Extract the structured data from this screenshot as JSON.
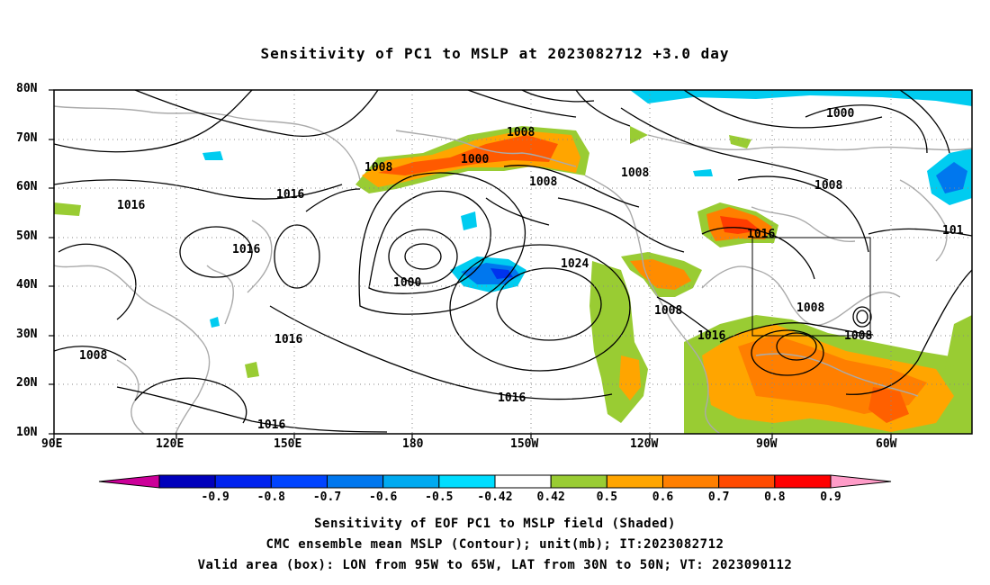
{
  "title": "Sensitivity of PC1 to MSLP at 2023082712 +3.0 day",
  "lat_labels": [
    "80N",
    "70N",
    "60N",
    "50N",
    "40N",
    "30N",
    "20N",
    "10N"
  ],
  "lon_labels": [
    "90E",
    "120E",
    "150E",
    "180",
    "150W",
    "120W",
    "90W",
    "60W"
  ],
  "contour_labels": [
    {
      "text": "1008"
    },
    {
      "text": "1000"
    },
    {
      "text": "1008"
    },
    {
      "text": "1008"
    },
    {
      "text": "1008"
    },
    {
      "text": "1016"
    },
    {
      "text": "1016"
    },
    {
      "text": "1016"
    },
    {
      "text": "1000"
    },
    {
      "text": "1024"
    },
    {
      "text": "1016"
    },
    {
      "text": "1016"
    },
    {
      "text": "1008"
    },
    {
      "text": "1016"
    },
    {
      "text": "1008"
    },
    {
      "text": "1008"
    },
    {
      "text": "1016"
    },
    {
      "text": "1008"
    },
    {
      "text": "1000"
    },
    {
      "text": "1016"
    },
    {
      "text": "1008"
    },
    {
      "text": "101"
    }
  ],
  "colorbar": {
    "labels": [
      "-0.9",
      "-0.8",
      "-0.7",
      "-0.6",
      "-0.5",
      "-0.42",
      "0.42",
      "0.5",
      "0.6",
      "0.7",
      "0.8",
      "0.9"
    ],
    "colors": [
      "#cc0099",
      "#0000bb",
      "#0022ee",
      "#0044ff",
      "#0077ee",
      "#00aaf0",
      "#00ddff",
      "#ffffff",
      "#99cc33",
      "#ffa500",
      "#ff7f00",
      "#ff4a00",
      "#ff0000",
      "#ff9cc8"
    ]
  },
  "footer": {
    "line1": "Sensitivity of EOF PC1 to MSLP field (Shaded)",
    "line2": "CMC ensemble mean MSLP (Contour); unit(mb); IT:2023082712",
    "line3": "Valid area (box): LON from 95W to 65W, LAT from 30N to 50N; VT: 2023090112"
  }
}
